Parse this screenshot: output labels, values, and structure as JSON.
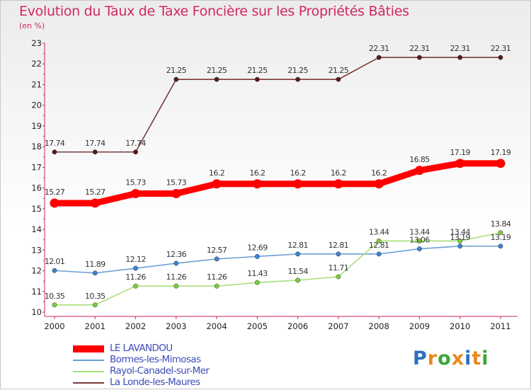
{
  "title": "Evolution du Taux de Taxe Foncière sur les Propriétés Bâties",
  "unit_label": "(en %)",
  "logo": {
    "text": "Proxiti",
    "letters": [
      "P",
      "r",
      "o",
      "x",
      "i",
      "t",
      "i"
    ],
    "colors": [
      "#2f6fbf",
      "#e8891e",
      "#3aa63a",
      "#e8891e",
      "#2f6fbf",
      "#e8891e",
      "#3aa63a"
    ]
  },
  "chart_data": {
    "type": "line",
    "title": "Evolution du Taux de Taxe Foncière sur les Propriétés Bâties",
    "ylabel": "(en %)",
    "xlabel": "",
    "categories": [
      "2000",
      "2001",
      "2002",
      "2003",
      "2004",
      "2005",
      "2006",
      "2007",
      "2008",
      "2009",
      "2010",
      "2011"
    ],
    "ylim": [
      10,
      23
    ],
    "yticks": [
      10,
      11,
      12,
      13,
      14,
      15,
      16,
      17,
      18,
      19,
      20,
      21,
      22,
      23
    ],
    "grid": false,
    "series": [
      {
        "name": "LE LAVANDOU",
        "color": "#ff0000",
        "marker": "#ff0000",
        "values": [
          15.27,
          15.27,
          15.73,
          15.73,
          16.2,
          16.2,
          16.2,
          16.2,
          16.2,
          16.85,
          17.19,
          17.19
        ],
        "labels": [
          "15.27",
          "15.27",
          "15.73",
          "15.73",
          "16.2",
          "16.2",
          "16.2",
          "16.2",
          "16.2",
          "16.85",
          "17.19",
          "17.19"
        ]
      },
      {
        "name": "Bormes-les-Mimosas",
        "color": "#6b9ed6",
        "marker": "#3f83cf",
        "values": [
          12.01,
          11.89,
          12.12,
          12.36,
          12.57,
          12.69,
          12.81,
          12.81,
          12.81,
          13.06,
          13.19,
          13.19
        ],
        "labels": [
          "12.01",
          "11.89",
          "12.12",
          "12.36",
          "12.57",
          "12.69",
          "12.81",
          "12.81",
          "12.81",
          "13.06",
          "13.19",
          "13.19"
        ]
      },
      {
        "name": "Rayol-Canadel-sur-Mer",
        "color": "#a8e07a",
        "marker": "#7ccd3e",
        "values": [
          10.35,
          10.35,
          11.26,
          11.26,
          11.26,
          11.43,
          11.54,
          11.71,
          13.44,
          13.44,
          13.44,
          13.84
        ],
        "labels": [
          "10.35",
          "10.35",
          "11.26",
          "11.26",
          "11.26",
          "11.43",
          "11.54",
          "11.71",
          "13.44",
          "13.44",
          "13.44",
          "13.84"
        ]
      },
      {
        "name": "La Londe-les-Maures",
        "color": "#7a3a3a",
        "marker": "#5a1a1a",
        "values": [
          17.74,
          17.74,
          17.74,
          21.25,
          21.25,
          21.25,
          21.25,
          21.25,
          22.31,
          22.31,
          22.31,
          22.31
        ],
        "labels": [
          "17.74",
          "17.74",
          "17.74",
          "21.25",
          "21.25",
          "21.25",
          "21.25",
          "21.25",
          "22.31",
          "22.31",
          "22.31",
          "22.31"
        ]
      }
    ],
    "legend": [
      "LE LAVANDOU",
      "Bormes-les-Mimosas",
      "Rayol-Canadel-sur-Mer",
      "La Londe-les-Maures"
    ],
    "legend_placement": "bottom-left"
  }
}
